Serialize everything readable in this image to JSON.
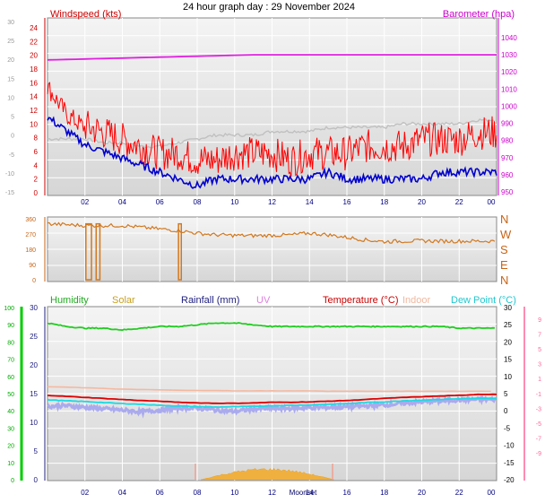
{
  "title": "24 hour graph day : 29 November 2024",
  "colors": {
    "windspeed": "#ff0000",
    "barometer": "#e020e0",
    "average_wind": "#0000cc",
    "gust_grey": "#c0c0c0",
    "direction": "#d2781e",
    "humidity": "#22cc22",
    "solar": "#e8a020",
    "rainfall": "#202080",
    "uv": "#e080e0",
    "temperature": "#dd0000",
    "indoor": "#f4b8a0",
    "dew_point": "#20d8e0",
    "grey_band": "#aaaaee",
    "left_axis_green": "#00cc00",
    "right_axis_pink": "#ff6699"
  },
  "x_ticks": [
    "02",
    "04",
    "06",
    "08",
    "10",
    "12",
    "14",
    "16",
    "18",
    "20",
    "22",
    "00"
  ],
  "panel_wind": {
    "left_label": "Windspeed (kts)",
    "right_label": "Barometer (hpa)",
    "left_ticks_red": [
      "24",
      "22",
      "20",
      "18",
      "16",
      "14",
      "12",
      "10",
      "8",
      "6",
      "4",
      "2",
      "0"
    ],
    "left_ticks_grey": [
      "30",
      "25",
      "20",
      "15",
      "10",
      "5",
      "0",
      "-5",
      "-10",
      "-15"
    ],
    "right_ticks": [
      "1040",
      "1030",
      "1020",
      "1010",
      "1000",
      "990",
      "980",
      "970",
      "960",
      "950"
    ],
    "pressure_hpa": {
      "start": 1027,
      "end": 1030,
      "plateau_hour": 11
    },
    "wind_gust_kts": [
      15,
      11,
      9,
      8,
      7,
      6,
      5,
      5,
      4,
      4,
      5,
      5,
      5,
      4,
      5,
      5,
      5,
      6,
      6,
      6,
      7,
      7,
      7,
      8
    ],
    "wind_avg_kts": [
      11,
      9,
      7,
      6,
      5,
      4,
      3,
      2,
      1,
      2,
      2,
      2,
      2,
      2,
      2,
      3,
      2,
      2,
      2,
      2,
      2,
      3,
      3,
      3
    ],
    "grey_trace_left_units": [
      -1,
      -1,
      -1,
      -2,
      -2,
      -3,
      -3,
      -2,
      -1,
      0,
      0,
      0,
      1,
      1,
      1,
      2,
      2,
      2,
      2,
      3,
      3,
      3,
      3,
      4
    ]
  },
  "panel_direction": {
    "left_ticks": [
      "360",
      "270",
      "180",
      "90",
      "0"
    ],
    "right_ticks": [
      "N",
      "W",
      "S",
      "E",
      "N"
    ],
    "direction_deg": [
      330,
      325,
      320,
      320,
      320,
      310,
      300,
      290,
      275,
      265,
      262,
      260,
      262,
      265,
      275,
      265,
      250,
      235,
      225,
      228,
      230,
      228,
      228,
      228
    ]
  },
  "panel_temp": {
    "legend": [
      "Humidity",
      "Solar",
      "Rainfall (mm)",
      "UV",
      "Temperature (°C)",
      "Indoor",
      "Dew Point (°C)"
    ],
    "left_ticks_green": [
      "100",
      "90",
      "80",
      "70",
      "60",
      "50",
      "40",
      "30",
      "20",
      "10",
      "0"
    ],
    "left_ticks_blue": [
      "30",
      "25",
      "20",
      "15",
      "10",
      "5",
      "0"
    ],
    "right_ticks_pink": [
      "30",
      "25",
      "20",
      "15",
      "10",
      "5",
      "0",
      "-5",
      "-10",
      "-15",
      "-20"
    ],
    "right_ticks_red": [
      "9",
      "7",
      "5",
      "3",
      "1",
      "-1",
      "-3",
      "-5",
      "-7",
      "-9"
    ],
    "moonset_label": "Moonset",
    "humidity_pct": [
      91,
      89,
      88,
      88,
      87,
      88,
      89,
      89,
      90,
      91,
      91,
      90,
      89,
      89,
      89,
      89,
      89,
      89,
      89,
      89,
      89,
      89,
      88,
      88
    ],
    "temperature_c": [
      4.5,
      4.2,
      3.9,
      3.6,
      3.3,
      3.0,
      2.8,
      2.5,
      2.3,
      2.2,
      2.2,
      2.3,
      2.5,
      2.5,
      2.6,
      2.8,
      3.0,
      3.3,
      3.6,
      3.9,
      4.1,
      4.3,
      4.5,
      4.8
    ],
    "dew_point_c": [
      3.2,
      2.9,
      2.7,
      2.4,
      2.1,
      1.9,
      1.6,
      1.4,
      1.2,
      1.1,
      1.2,
      1.3,
      1.5,
      1.6,
      1.7,
      1.9,
      2.1,
      2.4,
      2.6,
      2.9,
      3.1,
      3.3,
      3.5,
      3.6
    ],
    "indoor_c": [
      7.0,
      6.9,
      6.7,
      6.5,
      6.3,
      6.2,
      6.1,
      6.0,
      5.9,
      5.9,
      5.8,
      5.8,
      5.8,
      5.8,
      5.8,
      5.7,
      5.7,
      5.7,
      5.7,
      5.7,
      5.7,
      5.7,
      5.7,
      5.7
    ],
    "band_c": [
      1.3,
      1.5,
      1.0,
      0.6,
      0.2,
      -0.3,
      0.2,
      0.8,
      0.8,
      0.2,
      -0.2,
      0.5,
      0.7,
      0.7,
      0.9,
      1.0,
      1.2,
      1.4,
      1.7,
      2.2,
      2.6,
      2.9,
      3.2,
      3.3
    ],
    "solar_peak_fraction": 0.06
  }
}
